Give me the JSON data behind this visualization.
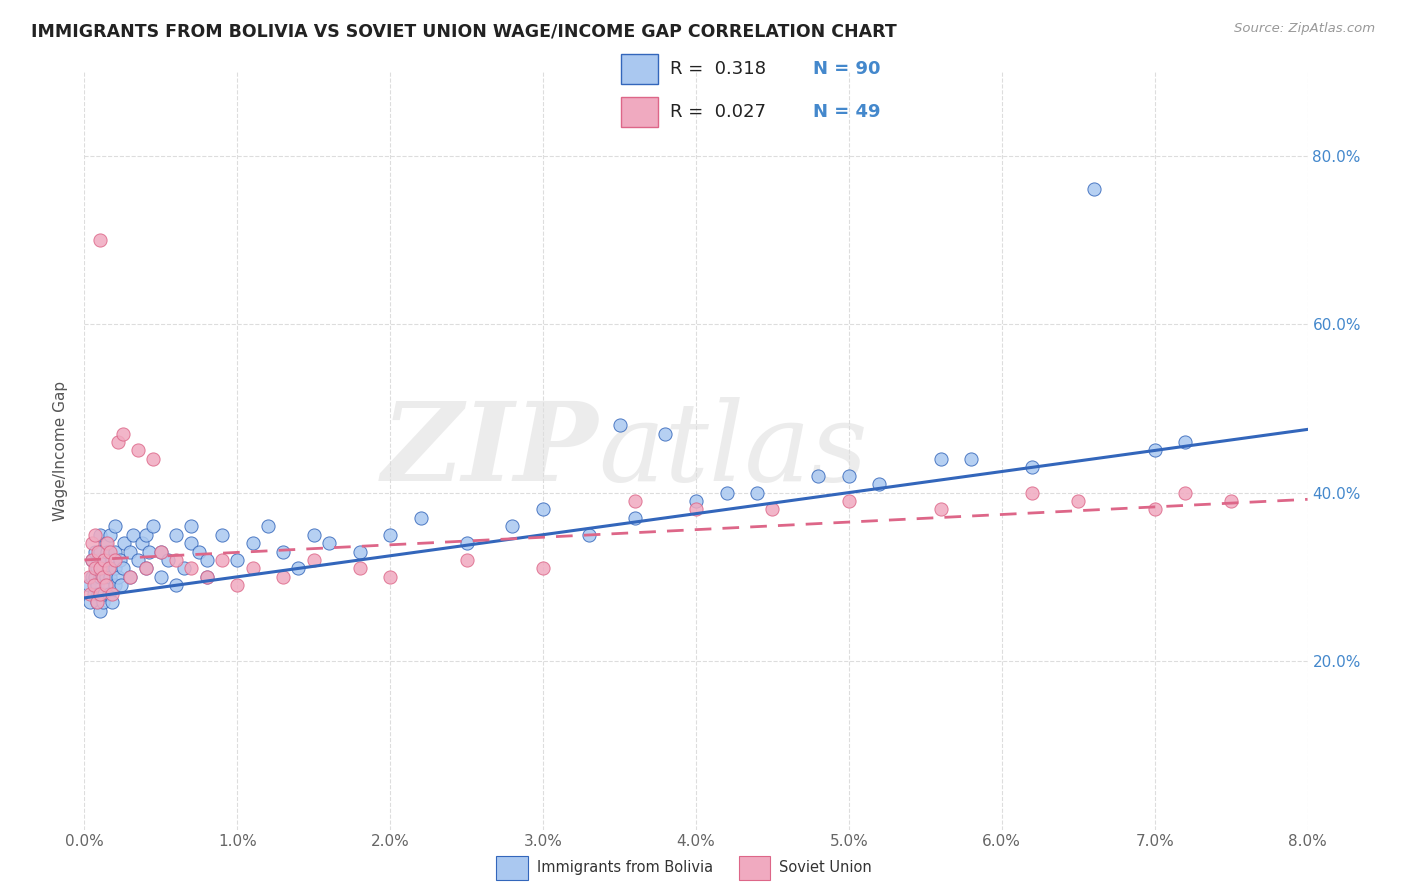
{
  "title": "IMMIGRANTS FROM BOLIVIA VS SOVIET UNION WAGE/INCOME GAP CORRELATION CHART",
  "source": "Source: ZipAtlas.com",
  "ylabel": "Wage/Income Gap",
  "watermark": "ZIPatlas",
  "legend_bolivia": "Immigrants from Bolivia",
  "legend_soviet": "Soviet Union",
  "bolivia_color": "#aac8f0",
  "soviet_color": "#f0aac0",
  "bolivia_line_color": "#3366bb",
  "soviet_line_color": "#dd6688",
  "background_color": "#ffffff",
  "grid_color": "#dddddd",
  "bolivia_x": [
    0.0003,
    0.0004,
    0.0005,
    0.0005,
    0.0006,
    0.0007,
    0.0007,
    0.0008,
    0.0008,
    0.0008,
    0.0009,
    0.0009,
    0.001,
    0.001,
    0.001,
    0.001,
    0.001,
    0.0012,
    0.0012,
    0.0013,
    0.0013,
    0.0014,
    0.0014,
    0.0015,
    0.0015,
    0.0016,
    0.0016,
    0.0017,
    0.0017,
    0.0018,
    0.0018,
    0.002,
    0.002,
    0.002,
    0.002,
    0.0022,
    0.0023,
    0.0024,
    0.0025,
    0.0026,
    0.003,
    0.003,
    0.0032,
    0.0035,
    0.0038,
    0.004,
    0.004,
    0.0042,
    0.0045,
    0.005,
    0.005,
    0.0055,
    0.006,
    0.006,
    0.0065,
    0.007,
    0.007,
    0.0075,
    0.008,
    0.008,
    0.009,
    0.01,
    0.011,
    0.012,
    0.013,
    0.014,
    0.015,
    0.016,
    0.018,
    0.02,
    0.022,
    0.025,
    0.028,
    0.03,
    0.033,
    0.036,
    0.04,
    0.044,
    0.048,
    0.052,
    0.056,
    0.062,
    0.066,
    0.07,
    0.072,
    0.035,
    0.038,
    0.042,
    0.05,
    0.058
  ],
  "bolivia_y": [
    0.29,
    0.27,
    0.3,
    0.32,
    0.28,
    0.3,
    0.33,
    0.27,
    0.29,
    0.31,
    0.28,
    0.32,
    0.26,
    0.28,
    0.3,
    0.33,
    0.35,
    0.27,
    0.31,
    0.28,
    0.32,
    0.3,
    0.34,
    0.29,
    0.33,
    0.28,
    0.31,
    0.3,
    0.35,
    0.27,
    0.32,
    0.29,
    0.31,
    0.33,
    0.36,
    0.3,
    0.32,
    0.29,
    0.31,
    0.34,
    0.3,
    0.33,
    0.35,
    0.32,
    0.34,
    0.31,
    0.35,
    0.33,
    0.36,
    0.3,
    0.33,
    0.32,
    0.29,
    0.35,
    0.31,
    0.34,
    0.36,
    0.33,
    0.3,
    0.32,
    0.35,
    0.32,
    0.34,
    0.36,
    0.33,
    0.31,
    0.35,
    0.34,
    0.33,
    0.35,
    0.37,
    0.34,
    0.36,
    0.38,
    0.35,
    0.37,
    0.39,
    0.4,
    0.42,
    0.41,
    0.44,
    0.43,
    0.76,
    0.45,
    0.46,
    0.48,
    0.47,
    0.4,
    0.42,
    0.44
  ],
  "soviet_x": [
    0.0003,
    0.0004,
    0.0005,
    0.0005,
    0.0006,
    0.0007,
    0.0007,
    0.0008,
    0.0009,
    0.001,
    0.001,
    0.001,
    0.0012,
    0.0013,
    0.0014,
    0.0015,
    0.0016,
    0.0017,
    0.0018,
    0.002,
    0.0022,
    0.0025,
    0.003,
    0.0035,
    0.004,
    0.0045,
    0.005,
    0.006,
    0.007,
    0.008,
    0.009,
    0.01,
    0.011,
    0.013,
    0.015,
    0.018,
    0.02,
    0.025,
    0.03,
    0.036,
    0.04,
    0.045,
    0.05,
    0.056,
    0.062,
    0.065,
    0.07,
    0.072,
    0.075
  ],
  "soviet_y": [
    0.3,
    0.28,
    0.32,
    0.34,
    0.29,
    0.31,
    0.35,
    0.27,
    0.33,
    0.28,
    0.31,
    0.7,
    0.3,
    0.32,
    0.29,
    0.34,
    0.31,
    0.33,
    0.28,
    0.32,
    0.46,
    0.47,
    0.3,
    0.45,
    0.31,
    0.44,
    0.33,
    0.32,
    0.31,
    0.3,
    0.32,
    0.29,
    0.31,
    0.3,
    0.32,
    0.31,
    0.3,
    0.32,
    0.31,
    0.39,
    0.38,
    0.38,
    0.39,
    0.38,
    0.4,
    0.39,
    0.38,
    0.4,
    0.39
  ],
  "xlim": [
    0.0,
    0.08
  ],
  "ylim": [
    0.0,
    0.9
  ],
  "ytick_vals": [
    0.2,
    0.4,
    0.6,
    0.8
  ],
  "xtick_vals": [
    0.0,
    0.01,
    0.02,
    0.03,
    0.04,
    0.05,
    0.06,
    0.07,
    0.08
  ],
  "bolivia_intercept": 0.275,
  "bolivia_slope": 2.5,
  "soviet_intercept": 0.32,
  "soviet_slope": 0.9
}
